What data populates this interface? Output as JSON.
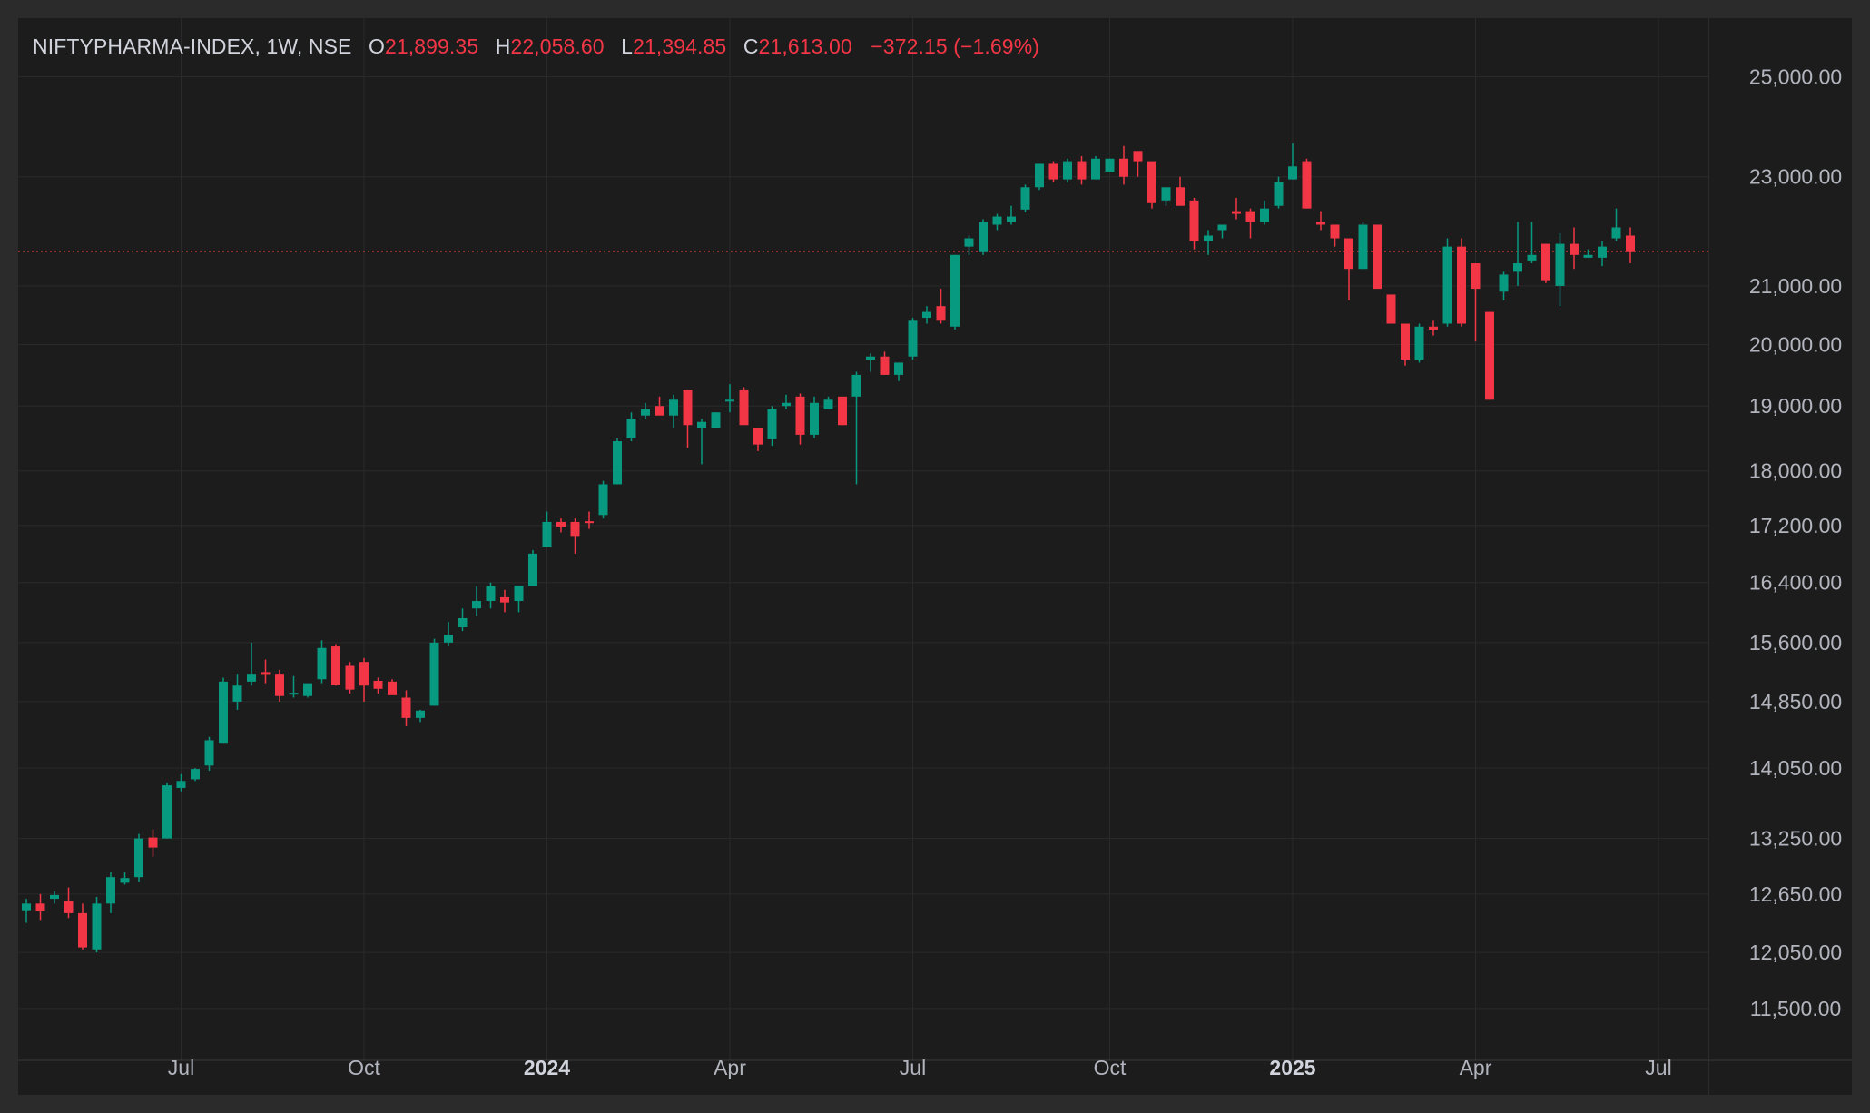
{
  "colors": {
    "up": "#089981",
    "down": "#f23645",
    "grid": "#2a2a2a",
    "background": "#1c1c1c",
    "text": "#b2b5be"
  },
  "legend": {
    "symbol": "NIFTYPHARMA-INDEX, 1W, NSE",
    "o_label": "O",
    "open": "21,899.35",
    "h_label": "H",
    "high": "22,058.60",
    "l_label": "L",
    "low": "21,394.85",
    "c_label": "C",
    "close": "21,613.00",
    "change": "−372.15 (−1.69%)"
  },
  "chart_data": {
    "type": "candlestick",
    "scale": "log",
    "ylim": [
      11300,
      25200
    ],
    "last_price": 21613,
    "y_ticks": [
      {
        "value": 25000,
        "label": "25,000.00"
      },
      {
        "value": 23000,
        "label": "23,000.00"
      },
      {
        "value": 21000,
        "label": "21,000.00"
      },
      {
        "value": 20000,
        "label": "20,000.00"
      },
      {
        "value": 19000,
        "label": "19,000.00"
      },
      {
        "value": 18000,
        "label": "18,000.00"
      },
      {
        "value": 17200,
        "label": "17,200.00"
      },
      {
        "value": 16400,
        "label": "16,400.00"
      },
      {
        "value": 15600,
        "label": "15,600.00"
      },
      {
        "value": 14850,
        "label": "14,850.00"
      },
      {
        "value": 14050,
        "label": "14,050.00"
      },
      {
        "value": 13250,
        "label": "13,250.00"
      },
      {
        "value": 12650,
        "label": "12,650.00"
      },
      {
        "value": 12050,
        "label": "12,050.00"
      },
      {
        "value": 11500,
        "label": "11,500.00"
      }
    ],
    "x_ticks": [
      {
        "index": 11,
        "label": "Jul",
        "bold": false
      },
      {
        "index": 24,
        "label": "Oct",
        "bold": false
      },
      {
        "index": 37,
        "label": "2024",
        "bold": true
      },
      {
        "index": 50,
        "label": "Apr",
        "bold": false
      },
      {
        "index": 63,
        "label": "Jul",
        "bold": false
      },
      {
        "index": 77,
        "label": "Oct",
        "bold": false
      },
      {
        "index": 90,
        "label": "2025",
        "bold": true
      },
      {
        "index": 103,
        "label": "Apr",
        "bold": false
      },
      {
        "index": 116,
        "label": "Jul",
        "bold": false
      }
    ],
    "candles": [
      [
        12480,
        12600,
        12350,
        12550
      ],
      [
        12550,
        12650,
        12380,
        12470
      ],
      [
        12600,
        12680,
        12550,
        12640
      ],
      [
        12580,
        12720,
        12400,
        12450
      ],
      [
        12450,
        12550,
        12080,
        12100
      ],
      [
        12080,
        12620,
        12050,
        12550
      ],
      [
        12550,
        12880,
        12450,
        12830
      ],
      [
        12770,
        12880,
        12750,
        12820
      ],
      [
        12830,
        13300,
        12780,
        13250
      ],
      [
        13260,
        13350,
        13050,
        13150
      ],
      [
        13250,
        13880,
        13250,
        13850
      ],
      [
        13820,
        13980,
        13780,
        13900
      ],
      [
        13920,
        14050,
        13900,
        14040
      ],
      [
        14080,
        14420,
        14020,
        14380
      ],
      [
        14350,
        15150,
        14350,
        15100
      ],
      [
        14850,
        15200,
        14750,
        15050
      ],
      [
        15100,
        15600,
        15050,
        15200
      ],
      [
        15220,
        15380,
        15080,
        15200
      ],
      [
        15200,
        15250,
        14850,
        14920
      ],
      [
        14950,
        15170,
        14900,
        14960
      ],
      [
        14920,
        15080,
        14900,
        15080
      ],
      [
        15130,
        15630,
        15080,
        15530
      ],
      [
        15550,
        15580,
        15050,
        15060
      ],
      [
        15300,
        15350,
        14950,
        15000
      ],
      [
        15350,
        15400,
        14850,
        15050
      ],
      [
        15110,
        15150,
        14950,
        15010
      ],
      [
        15100,
        15130,
        14980,
        14930
      ],
      [
        14900,
        14990,
        14550,
        14650
      ],
      [
        14650,
        14750,
        14600,
        14740
      ],
      [
        14800,
        15650,
        14800,
        15600
      ],
      [
        15600,
        15870,
        15550,
        15700
      ],
      [
        15800,
        16050,
        15750,
        15920
      ],
      [
        16050,
        16350,
        15950,
        16150
      ],
      [
        16150,
        16400,
        16050,
        16350
      ],
      [
        16200,
        16300,
        16000,
        16130
      ],
      [
        16150,
        16350,
        16000,
        16360
      ],
      [
        16350,
        16850,
        16350,
        16800
      ],
      [
        16900,
        17400,
        16900,
        17250
      ],
      [
        17250,
        17300,
        17100,
        17180
      ],
      [
        17250,
        17300,
        16800,
        17050
      ],
      [
        17260,
        17400,
        17150,
        17250
      ],
      [
        17350,
        17850,
        17300,
        17800
      ],
      [
        17800,
        18500,
        17800,
        18450
      ],
      [
        18500,
        18900,
        18450,
        18800
      ],
      [
        18850,
        19050,
        18800,
        18950
      ],
      [
        19000,
        19150,
        18900,
        18850
      ],
      [
        18850,
        19180,
        18650,
        19100
      ],
      [
        19250,
        19250,
        18350,
        18700
      ],
      [
        18650,
        18800,
        18100,
        18750
      ],
      [
        18650,
        18900,
        18650,
        18900
      ],
      [
        19080,
        19350,
        18900,
        19100
      ],
      [
        19250,
        19300,
        18750,
        18700
      ],
      [
        18650,
        18650,
        18300,
        18400
      ],
      [
        18480,
        19000,
        18380,
        18950
      ],
      [
        19000,
        19180,
        18950,
        19050
      ],
      [
        19150,
        19200,
        18400,
        18550
      ],
      [
        18550,
        19150,
        18500,
        19050
      ],
      [
        18950,
        19150,
        18950,
        19100
      ],
      [
        19150,
        19150,
        18700,
        18700
      ],
      [
        19150,
        19550,
        17800,
        19500
      ],
      [
        19750,
        19850,
        19550,
        19800
      ],
      [
        19800,
        19880,
        19500,
        19500
      ],
      [
        19500,
        19650,
        19400,
        19700
      ],
      [
        19800,
        20450,
        19750,
        20400
      ],
      [
        20450,
        20650,
        20350,
        20550
      ],
      [
        20650,
        20950,
        20350,
        20400
      ],
      [
        20300,
        21550,
        20250,
        21550
      ],
      [
        21700,
        21900,
        21550,
        21850
      ],
      [
        21600,
        22200,
        21550,
        22150
      ],
      [
        22100,
        22300,
        22000,
        22250
      ],
      [
        22150,
        22450,
        22100,
        22250
      ],
      [
        22380,
        22850,
        22330,
        22800
      ],
      [
        22800,
        23250,
        22750,
        23250
      ],
      [
        23250,
        23300,
        22900,
        22950
      ],
      [
        22950,
        23350,
        22900,
        23300
      ],
      [
        23300,
        23400,
        22850,
        22950
      ],
      [
        22950,
        23400,
        22950,
        23350
      ],
      [
        23100,
        23350,
        23100,
        23350
      ],
      [
        23350,
        23600,
        22850,
        23000
      ],
      [
        23500,
        23500,
        23000,
        23300
      ],
      [
        23300,
        23300,
        22400,
        22500
      ],
      [
        22550,
        22700,
        22450,
        22800
      ],
      [
        22800,
        23000,
        22500,
        22450
      ],
      [
        22550,
        22600,
        21650,
        21800
      ],
      [
        21800,
        22000,
        21550,
        21900
      ],
      [
        22000,
        22100,
        21850,
        22100
      ],
      [
        22350,
        22600,
        22200,
        22300
      ],
      [
        22350,
        22400,
        21850,
        22150
      ],
      [
        22150,
        22550,
        22100,
        22400
      ],
      [
        22450,
        23000,
        22400,
        22900
      ],
      [
        22950,
        23650,
        22950,
        23200
      ],
      [
        23300,
        23350,
        22400,
        22400
      ],
      [
        22150,
        22350,
        22000,
        22100
      ],
      [
        22100,
        22100,
        21700,
        21850
      ],
      [
        21850,
        21850,
        20750,
        21300
      ],
      [
        21300,
        22150,
        21300,
        22100
      ],
      [
        22100,
        22100,
        20950,
        20950
      ],
      [
        20850,
        20850,
        20400,
        20350
      ],
      [
        20350,
        20350,
        19650,
        19750
      ],
      [
        19750,
        20350,
        19700,
        20300
      ],
      [
        20300,
        20400,
        20150,
        20250
      ],
      [
        20350,
        21850,
        20300,
        21700
      ],
      [
        21700,
        21850,
        20300,
        20350
      ],
      [
        21400,
        21400,
        20050,
        20950
      ],
      [
        20550,
        20550,
        19100,
        19100
      ],
      [
        20900,
        21250,
        20750,
        21200
      ],
      [
        21250,
        22150,
        21000,
        21400
      ],
      [
        21450,
        22150,
        21400,
        21550
      ],
      [
        21750,
        21750,
        21050,
        21100
      ],
      [
        21000,
        21950,
        20650,
        21750
      ],
      [
        21750,
        22050,
        21300,
        21550
      ],
      [
        21500,
        21650,
        21500,
        21550
      ],
      [
        21500,
        21800,
        21350,
        21700
      ],
      [
        21850,
        22400,
        21800,
        22050
      ],
      [
        21900,
        22050,
        21400,
        21600
      ]
    ]
  }
}
